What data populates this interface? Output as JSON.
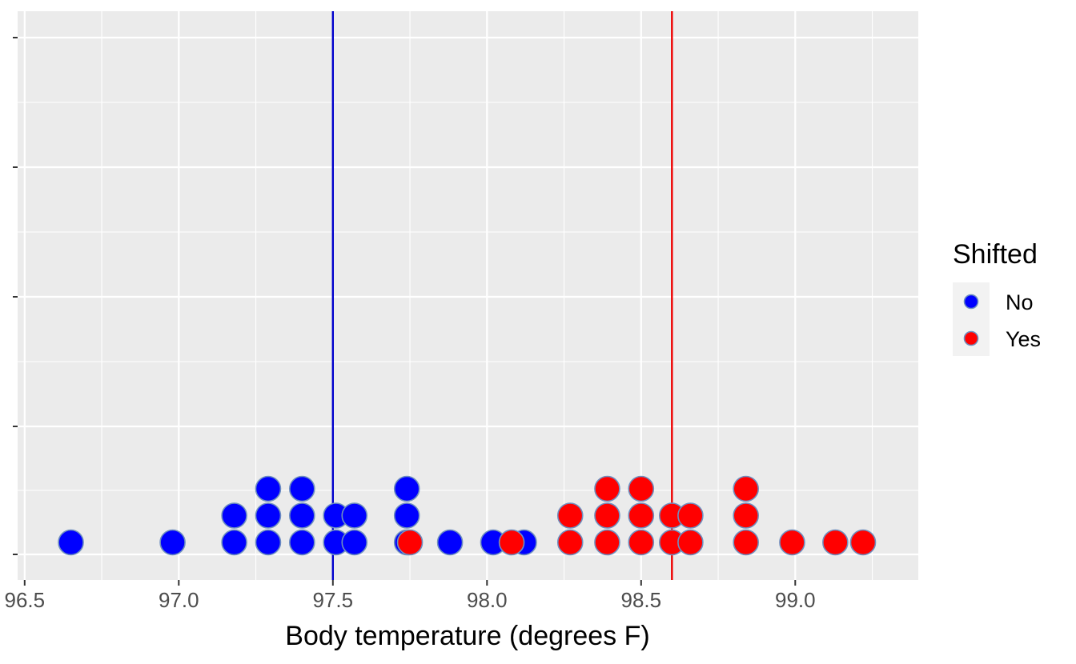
{
  "chart_data": {
    "type": "scatter",
    "subtype": "dotplot",
    "title": "",
    "xlabel": "Body temperature (degrees F)",
    "ylabel": "",
    "xlim": [
      96.48,
      99.38
    ],
    "x_ticks": [
      96.5,
      97.0,
      97.5,
      98.0,
      98.5,
      99.0
    ],
    "x_tick_labels": [
      "96.5",
      "97.0",
      "97.5",
      "98.0",
      "98.5",
      "99.0"
    ],
    "grid": true,
    "legend": {
      "title": "Shifted",
      "position": "right"
    },
    "colors": {
      "No": "#0000ff",
      "Yes": "#ff0000",
      "point_border": "#6e8fbf",
      "panel": "#ebebeb",
      "grid": "#ffffff"
    },
    "reference_lines": [
      {
        "series": "No",
        "x": 97.5,
        "color": "#0000cc"
      },
      {
        "series": "Yes",
        "x": 98.6,
        "color": "#ee0000"
      }
    ],
    "series": [
      {
        "name": "No",
        "color": "#0000ff",
        "points": [
          {
            "x": 96.65,
            "stack": 1
          },
          {
            "x": 96.98,
            "stack": 1
          },
          {
            "x": 97.18,
            "stack": 1
          },
          {
            "x": 97.18,
            "stack": 2
          },
          {
            "x": 97.29,
            "stack": 1
          },
          {
            "x": 97.29,
            "stack": 2
          },
          {
            "x": 97.29,
            "stack": 3
          },
          {
            "x": 97.4,
            "stack": 1
          },
          {
            "x": 97.4,
            "stack": 2
          },
          {
            "x": 97.4,
            "stack": 3
          },
          {
            "x": 97.51,
            "stack": 1
          },
          {
            "x": 97.51,
            "stack": 2
          },
          {
            "x": 97.57,
            "stack": 1
          },
          {
            "x": 97.57,
            "stack": 2
          },
          {
            "x": 97.74,
            "stack": 1
          },
          {
            "x": 97.74,
            "stack": 2
          },
          {
            "x": 97.74,
            "stack": 3
          },
          {
            "x": 97.88,
            "stack": 1
          },
          {
            "x": 98.02,
            "stack": 1
          },
          {
            "x": 98.12,
            "stack": 1
          }
        ]
      },
      {
        "name": "Yes",
        "color": "#ff0000",
        "points": [
          {
            "x": 97.75,
            "stack": 1
          },
          {
            "x": 98.08,
            "stack": 1
          },
          {
            "x": 98.27,
            "stack": 1
          },
          {
            "x": 98.27,
            "stack": 2
          },
          {
            "x": 98.39,
            "stack": 1
          },
          {
            "x": 98.39,
            "stack": 2
          },
          {
            "x": 98.39,
            "stack": 3
          },
          {
            "x": 98.5,
            "stack": 1
          },
          {
            "x": 98.5,
            "stack": 2
          },
          {
            "x": 98.5,
            "stack": 3
          },
          {
            "x": 98.6,
            "stack": 1
          },
          {
            "x": 98.6,
            "stack": 2
          },
          {
            "x": 98.66,
            "stack": 1
          },
          {
            "x": 98.66,
            "stack": 2
          },
          {
            "x": 98.84,
            "stack": 1
          },
          {
            "x": 98.84,
            "stack": 2
          },
          {
            "x": 98.84,
            "stack": 3
          },
          {
            "x": 98.99,
            "stack": 1
          },
          {
            "x": 99.13,
            "stack": 1
          },
          {
            "x": 99.22,
            "stack": 1
          }
        ]
      }
    ]
  }
}
